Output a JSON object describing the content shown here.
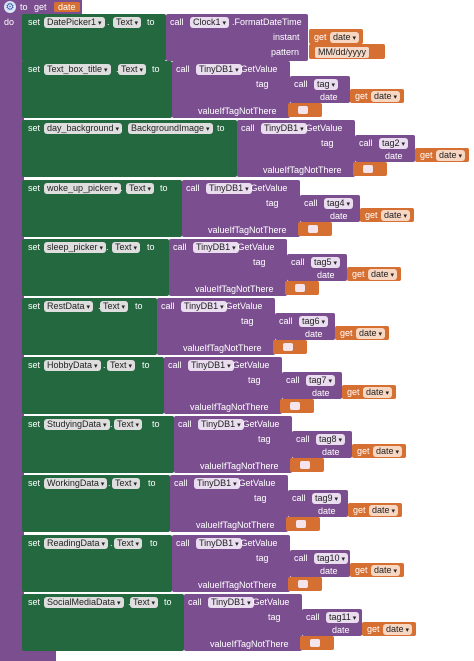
{
  "header": {
    "to": "to",
    "get": "get",
    "param": "date",
    "do": "do"
  },
  "kw": {
    "set": "set",
    "to": "to",
    "call": "call",
    "dot": ".",
    "get": "get",
    "getvalue": ".GetValue",
    "tag": "tag",
    "date": "date",
    "vitn": "valueIfTagNotThere",
    "instant": "instant",
    "pattern": "pattern",
    "format": ".FormatDateTime"
  },
  "first": {
    "component": "DatePicker1",
    "prop": "Text",
    "clock": "Clock1",
    "getvar": "date",
    "pattern": "MM/dd/yyyy"
  },
  "rows": [
    {
      "component": "Text_box_title",
      "prop": "Text",
      "db": "TinyDB1",
      "tag": "tag",
      "getvar": "date"
    },
    {
      "component": "day_background",
      "prop": "BackgroundImage",
      "db": "TinyDB1",
      "tag": "tag2",
      "getvar": "date"
    },
    {
      "component": "woke_up_picker",
      "prop": "Text",
      "db": "TinyDB1",
      "tag": "tag4",
      "getvar": "date"
    },
    {
      "component": "sleep_picker",
      "prop": "Text",
      "db": "TinyDB1",
      "tag": "tag5",
      "getvar": "date"
    },
    {
      "component": "RestData",
      "prop": "Text",
      "db": "TinyDB1",
      "tag": "tag6",
      "getvar": "date"
    },
    {
      "component": "HobbyData",
      "prop": "Text",
      "db": "TinyDB1",
      "tag": "tag7",
      "getvar": "date"
    },
    {
      "component": "StudyingData",
      "prop": "Text",
      "db": "TinyDB1",
      "tag": "tag8",
      "getvar": "date"
    },
    {
      "component": "WorkingData",
      "prop": "Text",
      "db": "TinyDB1",
      "tag": "tag9",
      "getvar": "date"
    },
    {
      "component": "ReadingData",
      "prop": "Text",
      "db": "TinyDB1",
      "tag": "tag10",
      "getvar": "date"
    },
    {
      "component": "SocialMediaData",
      "prop": "Text",
      "db": "TinyDB1",
      "tag": "tag11",
      "getvar": "date"
    }
  ]
}
